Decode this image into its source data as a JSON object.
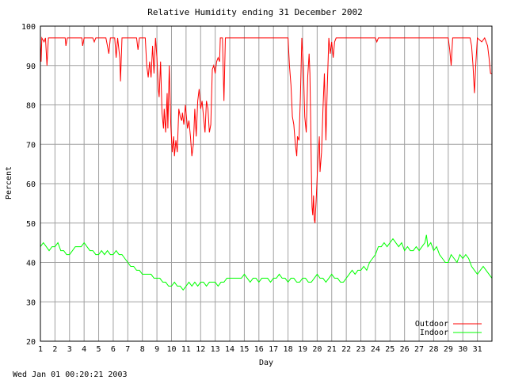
{
  "chart_data": {
    "type": "line",
    "title": "Relative Humidity ending 31 December 2002",
    "xlabel": "Day",
    "ylabel": "Percent",
    "xlim": [
      1,
      32
    ],
    "ylim": [
      20,
      100
    ],
    "y_ticks": [
      20,
      30,
      40,
      50,
      60,
      70,
      80,
      90,
      100
    ],
    "x_ticks": [
      1,
      2,
      3,
      4,
      5,
      6,
      7,
      8,
      9,
      10,
      11,
      12,
      13,
      14,
      15,
      16,
      17,
      18,
      19,
      20,
      21,
      22,
      23,
      24,
      25,
      26,
      27,
      28,
      29,
      30,
      31
    ],
    "grid": true,
    "legend_position": "bottom-right",
    "series": [
      {
        "name": "Outdoor",
        "color": "#ff0000",
        "points": [
          [
            1.0,
            96
          ],
          [
            1.05,
            91
          ],
          [
            1.1,
            97
          ],
          [
            1.25,
            96
          ],
          [
            1.35,
            97
          ],
          [
            1.45,
            90
          ],
          [
            1.55,
            97
          ],
          [
            2.5,
            97
          ],
          [
            2.7,
            97
          ],
          [
            2.75,
            95
          ],
          [
            2.85,
            97
          ],
          [
            3.5,
            97
          ],
          [
            3.85,
            97
          ],
          [
            3.9,
            95
          ],
          [
            4.0,
            97
          ],
          [
            4.6,
            97
          ],
          [
            4.7,
            96
          ],
          [
            4.8,
            97
          ],
          [
            5.5,
            97
          ],
          [
            5.6,
            95
          ],
          [
            5.7,
            93
          ],
          [
            5.8,
            97
          ],
          [
            6.1,
            97
          ],
          [
            6.2,
            92
          ],
          [
            6.3,
            97
          ],
          [
            6.45,
            92
          ],
          [
            6.5,
            86
          ],
          [
            6.6,
            97
          ],
          [
            7.6,
            97
          ],
          [
            7.7,
            94
          ],
          [
            7.8,
            97
          ],
          [
            8.2,
            97
          ],
          [
            8.3,
            90
          ],
          [
            8.4,
            87
          ],
          [
            8.5,
            91
          ],
          [
            8.6,
            87
          ],
          [
            8.7,
            95
          ],
          [
            8.8,
            88
          ],
          [
            8.9,
            97
          ],
          [
            9.0,
            92
          ],
          [
            9.1,
            84
          ],
          [
            9.15,
            82
          ],
          [
            9.25,
            91
          ],
          [
            9.35,
            78
          ],
          [
            9.45,
            74
          ],
          [
            9.5,
            79
          ],
          [
            9.6,
            73
          ],
          [
            9.7,
            83
          ],
          [
            9.75,
            74
          ],
          [
            9.85,
            90
          ],
          [
            9.95,
            75
          ],
          [
            10.05,
            68
          ],
          [
            10.15,
            72
          ],
          [
            10.2,
            67
          ],
          [
            10.3,
            71
          ],
          [
            10.4,
            68
          ],
          [
            10.5,
            79
          ],
          [
            10.6,
            77
          ],
          [
            10.7,
            76
          ],
          [
            10.75,
            78
          ],
          [
            10.85,
            75
          ],
          [
            10.95,
            80
          ],
          [
            11.0,
            78
          ],
          [
            11.1,
            74
          ],
          [
            11.2,
            76
          ],
          [
            11.3,
            72
          ],
          [
            11.4,
            67
          ],
          [
            11.5,
            70
          ],
          [
            11.6,
            79
          ],
          [
            11.7,
            72
          ],
          [
            11.8,
            81
          ],
          [
            11.9,
            84
          ],
          [
            12.0,
            79
          ],
          [
            12.1,
            81
          ],
          [
            12.2,
            77
          ],
          [
            12.3,
            73
          ],
          [
            12.4,
            81
          ],
          [
            12.5,
            79
          ],
          [
            12.6,
            73
          ],
          [
            12.7,
            75
          ],
          [
            12.8,
            89
          ],
          [
            12.9,
            90
          ],
          [
            13.0,
            88
          ],
          [
            13.1,
            91
          ],
          [
            13.2,
            92
          ],
          [
            13.3,
            91
          ],
          [
            13.35,
            97
          ],
          [
            13.5,
            97
          ],
          [
            13.6,
            81
          ],
          [
            13.7,
            97
          ],
          [
            14.0,
            97
          ],
          [
            16.0,
            97
          ],
          [
            17.0,
            97
          ],
          [
            18.0,
            97
          ],
          [
            18.1,
            90
          ],
          [
            18.2,
            85
          ],
          [
            18.3,
            77
          ],
          [
            18.4,
            75
          ],
          [
            18.5,
            70
          ],
          [
            18.6,
            67
          ],
          [
            18.65,
            72
          ],
          [
            18.75,
            71
          ],
          [
            18.85,
            82
          ],
          [
            18.95,
            97
          ],
          [
            19.05,
            90
          ],
          [
            19.15,
            77
          ],
          [
            19.25,
            73
          ],
          [
            19.35,
            87
          ],
          [
            19.45,
            93
          ],
          [
            19.5,
            88
          ],
          [
            19.55,
            77
          ],
          [
            19.6,
            64
          ],
          [
            19.65,
            54
          ],
          [
            19.7,
            52
          ],
          [
            19.75,
            57
          ],
          [
            19.8,
            51
          ],
          [
            19.85,
            50
          ],
          [
            19.95,
            57
          ],
          [
            20.05,
            66
          ],
          [
            20.15,
            72
          ],
          [
            20.2,
            63
          ],
          [
            20.3,
            68
          ],
          [
            20.4,
            79
          ],
          [
            20.5,
            88
          ],
          [
            20.6,
            71
          ],
          [
            20.7,
            85
          ],
          [
            20.8,
            97
          ],
          [
            20.9,
            93
          ],
          [
            21.0,
            96
          ],
          [
            21.1,
            92
          ],
          [
            21.2,
            96
          ],
          [
            21.3,
            97
          ],
          [
            22.0,
            97
          ],
          [
            23.0,
            97
          ],
          [
            24.0,
            97
          ],
          [
            24.1,
            96
          ],
          [
            24.2,
            97
          ],
          [
            25.0,
            97
          ],
          [
            26.0,
            97
          ],
          [
            27.0,
            97
          ],
          [
            28.0,
            97
          ],
          [
            29.0,
            97
          ],
          [
            29.1,
            94
          ],
          [
            29.2,
            90
          ],
          [
            29.3,
            97
          ],
          [
            30.0,
            97
          ],
          [
            30.5,
            97
          ],
          [
            30.6,
            95
          ],
          [
            30.7,
            90
          ],
          [
            30.8,
            83
          ],
          [
            30.9,
            91
          ],
          [
            31.0,
            97
          ],
          [
            31.3,
            96
          ],
          [
            31.5,
            97
          ],
          [
            31.7,
            95
          ],
          [
            31.8,
            92
          ],
          [
            31.9,
            88
          ],
          [
            32.0,
            88
          ]
        ]
      },
      {
        "name": "Indoor",
        "color": "#00ff00",
        "points": [
          [
            1.0,
            44
          ],
          [
            1.2,
            45
          ],
          [
            1.4,
            44
          ],
          [
            1.6,
            43
          ],
          [
            1.8,
            44
          ],
          [
            2.0,
            44
          ],
          [
            2.2,
            45
          ],
          [
            2.4,
            43
          ],
          [
            2.6,
            43
          ],
          [
            2.8,
            42
          ],
          [
            3.0,
            42
          ],
          [
            3.2,
            43
          ],
          [
            3.4,
            44
          ],
          [
            3.6,
            44
          ],
          [
            3.8,
            44
          ],
          [
            4.0,
            45
          ],
          [
            4.2,
            44
          ],
          [
            4.4,
            43
          ],
          [
            4.6,
            43
          ],
          [
            4.8,
            42
          ],
          [
            5.0,
            42
          ],
          [
            5.2,
            43
          ],
          [
            5.4,
            42
          ],
          [
            5.6,
            43
          ],
          [
            5.8,
            42
          ],
          [
            6.0,
            42
          ],
          [
            6.2,
            43
          ],
          [
            6.4,
            42
          ],
          [
            6.6,
            42
          ],
          [
            6.8,
            41
          ],
          [
            7.0,
            40
          ],
          [
            7.2,
            39
          ],
          [
            7.4,
            39
          ],
          [
            7.6,
            38
          ],
          [
            7.8,
            38
          ],
          [
            8.0,
            37
          ],
          [
            8.2,
            37
          ],
          [
            8.4,
            37
          ],
          [
            8.6,
            37
          ],
          [
            8.8,
            36
          ],
          [
            9.0,
            36
          ],
          [
            9.2,
            36
          ],
          [
            9.4,
            35
          ],
          [
            9.6,
            35
          ],
          [
            9.8,
            34
          ],
          [
            10.0,
            34
          ],
          [
            10.2,
            35
          ],
          [
            10.4,
            34
          ],
          [
            10.6,
            34
          ],
          [
            10.8,
            33
          ],
          [
            11.0,
            34
          ],
          [
            11.2,
            35
          ],
          [
            11.4,
            34
          ],
          [
            11.6,
            35
          ],
          [
            11.8,
            34
          ],
          [
            12.0,
            35
          ],
          [
            12.2,
            35
          ],
          [
            12.4,
            34
          ],
          [
            12.6,
            35
          ],
          [
            12.8,
            35
          ],
          [
            13.0,
            35
          ],
          [
            13.2,
            34
          ],
          [
            13.4,
            35
          ],
          [
            13.6,
            35
          ],
          [
            13.8,
            36
          ],
          [
            14.0,
            36
          ],
          [
            14.4,
            36
          ],
          [
            14.8,
            36
          ],
          [
            15.0,
            37
          ],
          [
            15.2,
            36
          ],
          [
            15.4,
            35
          ],
          [
            15.6,
            36
          ],
          [
            15.8,
            36
          ],
          [
            16.0,
            35
          ],
          [
            16.2,
            36
          ],
          [
            16.4,
            36
          ],
          [
            16.6,
            36
          ],
          [
            16.8,
            35
          ],
          [
            17.0,
            36
          ],
          [
            17.2,
            36
          ],
          [
            17.4,
            37
          ],
          [
            17.6,
            36
          ],
          [
            17.8,
            36
          ],
          [
            18.0,
            35
          ],
          [
            18.2,
            36
          ],
          [
            18.4,
            36
          ],
          [
            18.6,
            35
          ],
          [
            18.8,
            35
          ],
          [
            19.0,
            36
          ],
          [
            19.2,
            36
          ],
          [
            19.4,
            35
          ],
          [
            19.6,
            35
          ],
          [
            19.8,
            36
          ],
          [
            20.0,
            37
          ],
          [
            20.2,
            36
          ],
          [
            20.4,
            36
          ],
          [
            20.6,
            35
          ],
          [
            20.8,
            36
          ],
          [
            21.0,
            37
          ],
          [
            21.2,
            36
          ],
          [
            21.4,
            36
          ],
          [
            21.6,
            35
          ],
          [
            21.8,
            35
          ],
          [
            22.0,
            36
          ],
          [
            22.2,
            37
          ],
          [
            22.4,
            38
          ],
          [
            22.6,
            37
          ],
          [
            22.8,
            38
          ],
          [
            23.0,
            38
          ],
          [
            23.2,
            39
          ],
          [
            23.4,
            38
          ],
          [
            23.6,
            40
          ],
          [
            23.8,
            41
          ],
          [
            24.0,
            42
          ],
          [
            24.2,
            44
          ],
          [
            24.4,
            44
          ],
          [
            24.6,
            45
          ],
          [
            24.8,
            44
          ],
          [
            25.0,
            45
          ],
          [
            25.2,
            46
          ],
          [
            25.4,
            45
          ],
          [
            25.6,
            44
          ],
          [
            25.8,
            45
          ],
          [
            26.0,
            43
          ],
          [
            26.2,
            44
          ],
          [
            26.4,
            43
          ],
          [
            26.6,
            43
          ],
          [
            26.8,
            44
          ],
          [
            27.0,
            43
          ],
          [
            27.2,
            44
          ],
          [
            27.4,
            45
          ],
          [
            27.5,
            47
          ],
          [
            27.6,
            44
          ],
          [
            27.8,
            45
          ],
          [
            28.0,
            43
          ],
          [
            28.2,
            44
          ],
          [
            28.4,
            42
          ],
          [
            28.6,
            41
          ],
          [
            28.8,
            40
          ],
          [
            29.0,
            40
          ],
          [
            29.2,
            42
          ],
          [
            29.4,
            41
          ],
          [
            29.6,
            40
          ],
          [
            29.8,
            42
          ],
          [
            30.0,
            41
          ],
          [
            30.2,
            42
          ],
          [
            30.4,
            41
          ],
          [
            30.6,
            39
          ],
          [
            30.8,
            38
          ],
          [
            31.0,
            37
          ],
          [
            31.2,
            38
          ],
          [
            31.4,
            39
          ],
          [
            31.6,
            38
          ],
          [
            31.8,
            37
          ],
          [
            32.0,
            36
          ]
        ]
      }
    ]
  },
  "footer": {
    "timestamp": "Wed Jan 01 00:20:21 2003"
  }
}
